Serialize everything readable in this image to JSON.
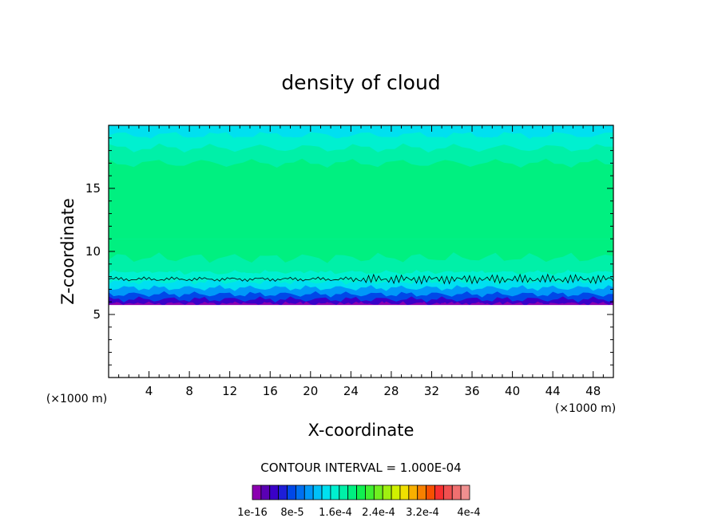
{
  "chart_data": {
    "type": "heatmap",
    "title": "density of cloud",
    "xlabel": "X-coordinate",
    "ylabel": "Z-coordinate",
    "x_unit": "(×1000 m)",
    "y_unit": "(×1000 m)",
    "xlim": [
      0,
      50
    ],
    "ylim": [
      0,
      20
    ],
    "x_ticks": [
      4,
      8,
      12,
      16,
      20,
      24,
      28,
      32,
      36,
      40,
      44,
      48
    ],
    "y_ticks": [
      5,
      10,
      15
    ],
    "contour_interval_label": "CONTOUR INTERVAL = 1.000E-04",
    "colorbar": {
      "labels": [
        "1e-16",
        "8e-5",
        "1.6e-4",
        "2.4e-4",
        "3.2e-4",
        "4e-4"
      ],
      "colors": [
        "#8b00b0",
        "#5a00b4",
        "#3a00c8",
        "#1e1ed8",
        "#0048e8",
        "#0070f0",
        "#0098f8",
        "#00c0f8",
        "#00e0f0",
        "#00f0d0",
        "#00f0a8",
        "#00f080",
        "#10f050",
        "#40f030",
        "#70f020",
        "#a0f010",
        "#d0f000",
        "#f0e000",
        "#f8b000",
        "#f88000",
        "#f85000",
        "#f83030",
        "#f05050",
        "#f07070",
        "#f09090"
      ]
    },
    "profile": [
      {
        "z": 5.8,
        "level": 0
      },
      {
        "z": 6.2,
        "level": 2
      },
      {
        "z": 6.6,
        "level": 4
      },
      {
        "z": 7.1,
        "level": 6
      },
      {
        "z": 7.6,
        "level": 8
      },
      {
        "z": 8.3,
        "level": 9
      },
      {
        "z": 9.5,
        "level": 10
      },
      {
        "z": 11.0,
        "level": 11
      },
      {
        "z": 17.0,
        "level": 11
      },
      {
        "z": 18.2,
        "level": 10
      },
      {
        "z": 19.2,
        "level": 9
      },
      {
        "z": 20.0,
        "level": 8
      }
    ],
    "contour_line_z": 7.8
  }
}
